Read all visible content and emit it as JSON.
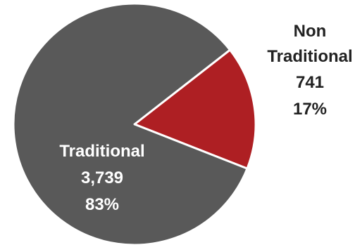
{
  "chart_data": {
    "type": "pie",
    "title": "",
    "start_angle_deg": 52,
    "slices": [
      {
        "label": "Non Traditional",
        "value": 741,
        "value_text": "741",
        "percent_text": "17%",
        "color": "#ae1f23",
        "label_color": "#222222"
      },
      {
        "label": "Traditional",
        "value": 3739,
        "value_text": "3,739",
        "percent_text": "83%",
        "color": "#595959",
        "label_color": "#ffffff"
      }
    ],
    "slice_border_color": "#ffffff",
    "background": "#ffffff"
  }
}
